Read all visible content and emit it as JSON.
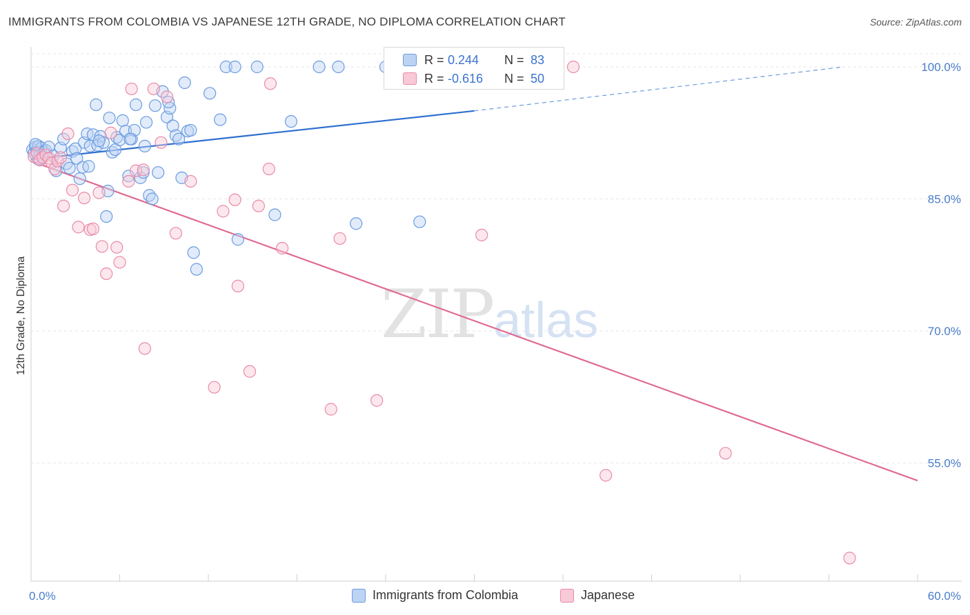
{
  "title": "IMMIGRANTS FROM COLOMBIA VS JAPANESE 12TH GRADE, NO DIPLOMA CORRELATION CHART",
  "source": "Source: ZipAtlas.com",
  "watermark": {
    "zip": "ZIP",
    "atlas": "atlas"
  },
  "stats": {
    "rows": [
      {
        "r_label": "R =",
        "r_value": "0.244",
        "n_label": "N =",
        "n_value": "83",
        "color": "#6a9be0",
        "fill": "#bcd3f3"
      },
      {
        "r_label": "R =",
        "r_value": "-0.616",
        "n_label": "N =",
        "n_value": "50",
        "color": "#e88aa8",
        "fill": "#f8c9d7"
      }
    ]
  },
  "legend": [
    {
      "label": "Immigrants from Colombia",
      "color": "#6a9be0",
      "fill": "#bcd3f3"
    },
    {
      "label": "Japanese",
      "color": "#e88aa8",
      "fill": "#f8c9d7"
    }
  ],
  "chart_data": {
    "type": "scatter",
    "title": "IMMIGRANTS FROM COLOMBIA VS JAPANESE 12TH GRADE, NO DIPLOMA CORRELATION CHART",
    "xlabel": "",
    "ylabel": "12th Grade, No Diploma",
    "xlim": [
      0,
      60
    ],
    "ylim": [
      37,
      100
    ],
    "x_ticks": [
      "0.0%",
      "60.0%"
    ],
    "y_ticks": [
      {
        "value": 100,
        "label": "100.0%"
      },
      {
        "value": 85,
        "label": "85.0%"
      },
      {
        "value": 70,
        "label": "70.0%"
      },
      {
        "value": 55,
        "label": "55.0%"
      }
    ],
    "grid": true,
    "legend_position": "bottom",
    "series": [
      {
        "name": "Immigrants from Colombia",
        "color": "#6a9be0",
        "fill": "#bcd3f3",
        "trend": {
          "x0": 0,
          "y0": 89.5,
          "x1": 30,
          "y1": 95.0,
          "x_dash_end": 55,
          "y_dash_end": 100
        },
        "points": [
          [
            0.1,
            90.6
          ],
          [
            0.2,
            90.2
          ],
          [
            0.3,
            90.9
          ],
          [
            0.4,
            90.4
          ],
          [
            0.5,
            91.0
          ],
          [
            0.6,
            90.0
          ],
          [
            0.7,
            90.8
          ],
          [
            0.8,
            89.7
          ],
          [
            0.9,
            90.3
          ],
          [
            1.0,
            90.5
          ],
          [
            0.3,
            91.2
          ],
          [
            0.5,
            89.5
          ],
          [
            1.2,
            90.9
          ],
          [
            1.5,
            89.9
          ],
          [
            1.7,
            88.2
          ],
          [
            2.0,
            90.8
          ],
          [
            2.2,
            91.8
          ],
          [
            2.4,
            89.0
          ],
          [
            2.6,
            88.5
          ],
          [
            2.8,
            90.4
          ],
          [
            3.0,
            90.7
          ],
          [
            3.1,
            89.6
          ],
          [
            3.3,
            87.3
          ],
          [
            3.5,
            88.6
          ],
          [
            3.6,
            91.4
          ],
          [
            3.8,
            92.4
          ],
          [
            3.9,
            88.7
          ],
          [
            4.0,
            91.0
          ],
          [
            4.2,
            92.3
          ],
          [
            4.4,
            95.7
          ],
          [
            4.5,
            91.1
          ],
          [
            4.7,
            92.1
          ],
          [
            4.9,
            91.4
          ],
          [
            5.1,
            83.0
          ],
          [
            5.2,
            85.9
          ],
          [
            5.3,
            94.2
          ],
          [
            5.5,
            90.3
          ],
          [
            5.7,
            90.6
          ],
          [
            5.8,
            92.0
          ],
          [
            6.0,
            91.7
          ],
          [
            6.2,
            93.9
          ],
          [
            6.4,
            92.7
          ],
          [
            6.6,
            87.6
          ],
          [
            6.8,
            91.8
          ],
          [
            7.0,
            92.8
          ],
          [
            7.1,
            95.7
          ],
          [
            7.4,
            87.4
          ],
          [
            7.6,
            88.0
          ],
          [
            7.8,
            93.7
          ],
          [
            8.0,
            85.4
          ],
          [
            8.2,
            85.0
          ],
          [
            8.4,
            95.6
          ],
          [
            8.6,
            88.0
          ],
          [
            8.9,
            97.2
          ],
          [
            9.2,
            94.3
          ],
          [
            9.4,
            95.3
          ],
          [
            9.6,
            93.3
          ],
          [
            9.8,
            92.2
          ],
          [
            10.0,
            91.8
          ],
          [
            10.2,
            87.4
          ],
          [
            10.4,
            98.2
          ],
          [
            10.6,
            92.7
          ],
          [
            10.8,
            92.8
          ],
          [
            11.0,
            78.9
          ],
          [
            11.2,
            77.0
          ],
          [
            12.1,
            97.0
          ],
          [
            12.8,
            94.0
          ],
          [
            13.2,
            100.0
          ],
          [
            13.8,
            100.0
          ],
          [
            14.0,
            80.4
          ],
          [
            15.3,
            100.0
          ],
          [
            16.5,
            83.2
          ],
          [
            17.6,
            93.8
          ],
          [
            19.5,
            100.0
          ],
          [
            20.8,
            100.0
          ],
          [
            22.0,
            82.2
          ],
          [
            24.0,
            100.0
          ],
          [
            26.3,
            82.4
          ],
          [
            28.0,
            100.0
          ],
          [
            9.3,
            96.0
          ],
          [
            4.6,
            91.6
          ],
          [
            7.7,
            91.0
          ],
          [
            6.7,
            91.8
          ]
        ]
      },
      {
        "name": "Japanese",
        "color": "#e88aa8",
        "fill": "#f8c9d7",
        "trend": {
          "x0": 0,
          "y0": 89.3,
          "x1": 60,
          "y1": 53.0
        },
        "points": [
          [
            0.2,
            89.8
          ],
          [
            0.4,
            90.2
          ],
          [
            0.6,
            89.4
          ],
          [
            0.8,
            89.7
          ],
          [
            1.0,
            90.0
          ],
          [
            1.2,
            89.6
          ],
          [
            1.4,
            89.1
          ],
          [
            1.6,
            88.4
          ],
          [
            1.8,
            89.3
          ],
          [
            2.0,
            89.7
          ],
          [
            2.2,
            84.2
          ],
          [
            2.5,
            92.4
          ],
          [
            2.8,
            86.0
          ],
          [
            3.2,
            81.8
          ],
          [
            3.6,
            85.1
          ],
          [
            4.0,
            81.5
          ],
          [
            4.2,
            81.6
          ],
          [
            4.6,
            85.7
          ],
          [
            4.8,
            79.6
          ],
          [
            5.1,
            76.5
          ],
          [
            5.4,
            92.5
          ],
          [
            5.8,
            79.5
          ],
          [
            6.0,
            77.8
          ],
          [
            6.6,
            87.0
          ],
          [
            6.8,
            97.5
          ],
          [
            7.1,
            88.2
          ],
          [
            7.6,
            88.3
          ],
          [
            7.7,
            68.0
          ],
          [
            8.3,
            97.5
          ],
          [
            8.8,
            91.4
          ],
          [
            9.2,
            96.6
          ],
          [
            9.8,
            81.1
          ],
          [
            10.8,
            87.0
          ],
          [
            12.4,
            63.6
          ],
          [
            13.0,
            83.6
          ],
          [
            13.8,
            84.9
          ],
          [
            14.0,
            75.1
          ],
          [
            14.8,
            65.4
          ],
          [
            15.4,
            84.2
          ],
          [
            16.2,
            98.1
          ],
          [
            16.1,
            88.4
          ],
          [
            17.0,
            79.4
          ],
          [
            20.3,
            61.1
          ],
          [
            20.9,
            80.5
          ],
          [
            23.4,
            62.1
          ],
          [
            30.5,
            80.9
          ],
          [
            36.7,
            100.0
          ],
          [
            38.9,
            53.6
          ],
          [
            47.0,
            56.1
          ],
          [
            55.4,
            44.2
          ]
        ]
      }
    ]
  }
}
